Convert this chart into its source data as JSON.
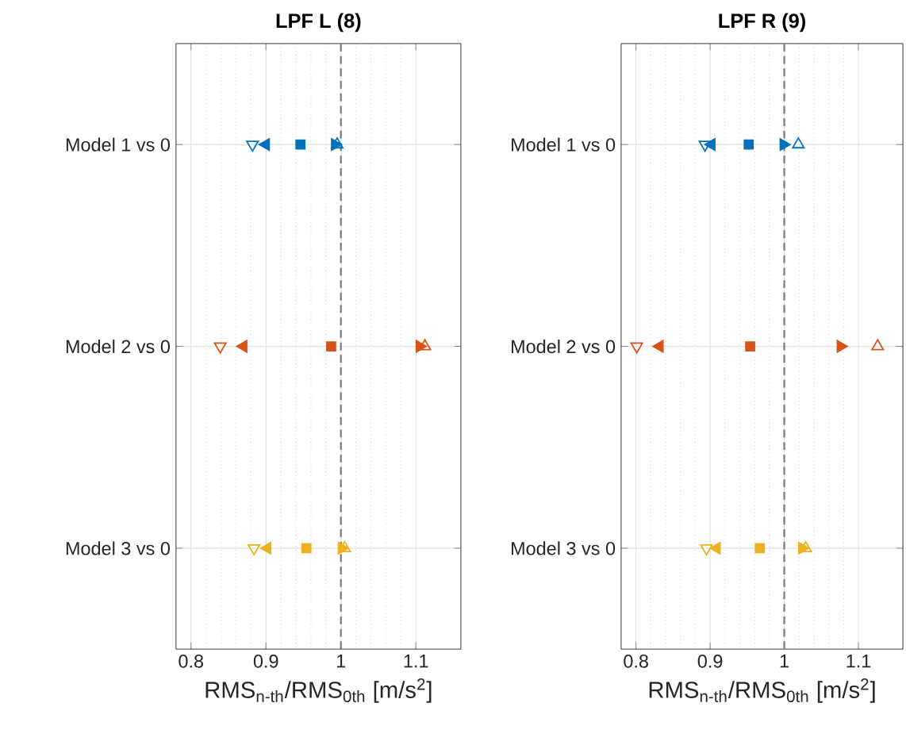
{
  "chart_data": [
    {
      "type": "scatter",
      "orientation": "horizontal",
      "title": "LPF L (8)",
      "xlabel": "RMS$_{n-th}$/RMS$_{0th}$ [m/s$^{2}$]",
      "categories": [
        "Model 1 vs 0",
        "Model 2 vs 0",
        "Model 3 vs 0"
      ],
      "xlim": [
        0.78,
        1.16
      ],
      "xticks": [
        0.8,
        0.9,
        1,
        1.1
      ],
      "grid": true,
      "ref_lines": [
        {
          "axis": "x",
          "value": 1,
          "color": "#808080",
          "line_style": "dashed"
        }
      ],
      "series": [
        {
          "marker": "triangle-down-open",
          "colors": [
            "#0072bd",
            "#d95319",
            "#edb120"
          ],
          "values": [
            0.882,
            0.839,
            0.884
          ]
        },
        {
          "marker": "triangle-left",
          "colors": [
            "#0072bd",
            "#d95319",
            "#edb120"
          ],
          "values": [
            0.9,
            0.87,
            0.902
          ]
        },
        {
          "marker": "square",
          "colors": [
            "#0072bd",
            "#d95319",
            "#edb120"
          ],
          "values": [
            0.946,
            0.987,
            0.954
          ]
        },
        {
          "marker": "triangle-right",
          "colors": [
            "#0072bd",
            "#d95319",
            "#edb120"
          ],
          "values": [
            0.992,
            1.105,
            1.001
          ]
        },
        {
          "marker": "triangle-open",
          "colors": [
            "#0072bd",
            "#d95319",
            "#edb120"
          ],
          "values": [
            0.995,
            1.112,
            1.005
          ]
        }
      ]
    },
    {
      "type": "scatter",
      "orientation": "horizontal",
      "title": "LPF R (9)",
      "xlabel": "RMS$_{n-th}$/RMS$_{0th}$ [m/s$^{2}$]",
      "categories": [
        "Model 1 vs 0",
        "Model 2 vs 0",
        "Model 3 vs 0"
      ],
      "xlim": [
        0.78,
        1.16
      ],
      "xticks": [
        0.8,
        0.9,
        1,
        1.1
      ],
      "grid": true,
      "ref_lines": [
        {
          "axis": "x",
          "value": 1,
          "color": "#808080",
          "line_style": "dashed"
        }
      ],
      "series": [
        {
          "marker": "triangle-down-open",
          "colors": [
            "#0072bd",
            "#d95319",
            "#edb120"
          ],
          "values": [
            0.893,
            0.801,
            0.895
          ]
        },
        {
          "marker": "triangle-left",
          "colors": [
            "#0072bd",
            "#d95319",
            "#edb120"
          ],
          "values": [
            0.902,
            0.832,
            0.909
          ]
        },
        {
          "marker": "square",
          "colors": [
            "#0072bd",
            "#d95319",
            "#edb120"
          ],
          "values": [
            0.952,
            0.954,
            0.967
          ]
        },
        {
          "marker": "triangle-right",
          "colors": [
            "#0072bd",
            "#d95319",
            "#edb120"
          ],
          "values": [
            0.999,
            1.076,
            1.024
          ]
        },
        {
          "marker": "triangle-open",
          "colors": [
            "#0072bd",
            "#d95319",
            "#edb120"
          ],
          "values": [
            1.019,
            1.126,
            1.029
          ]
        }
      ]
    }
  ]
}
